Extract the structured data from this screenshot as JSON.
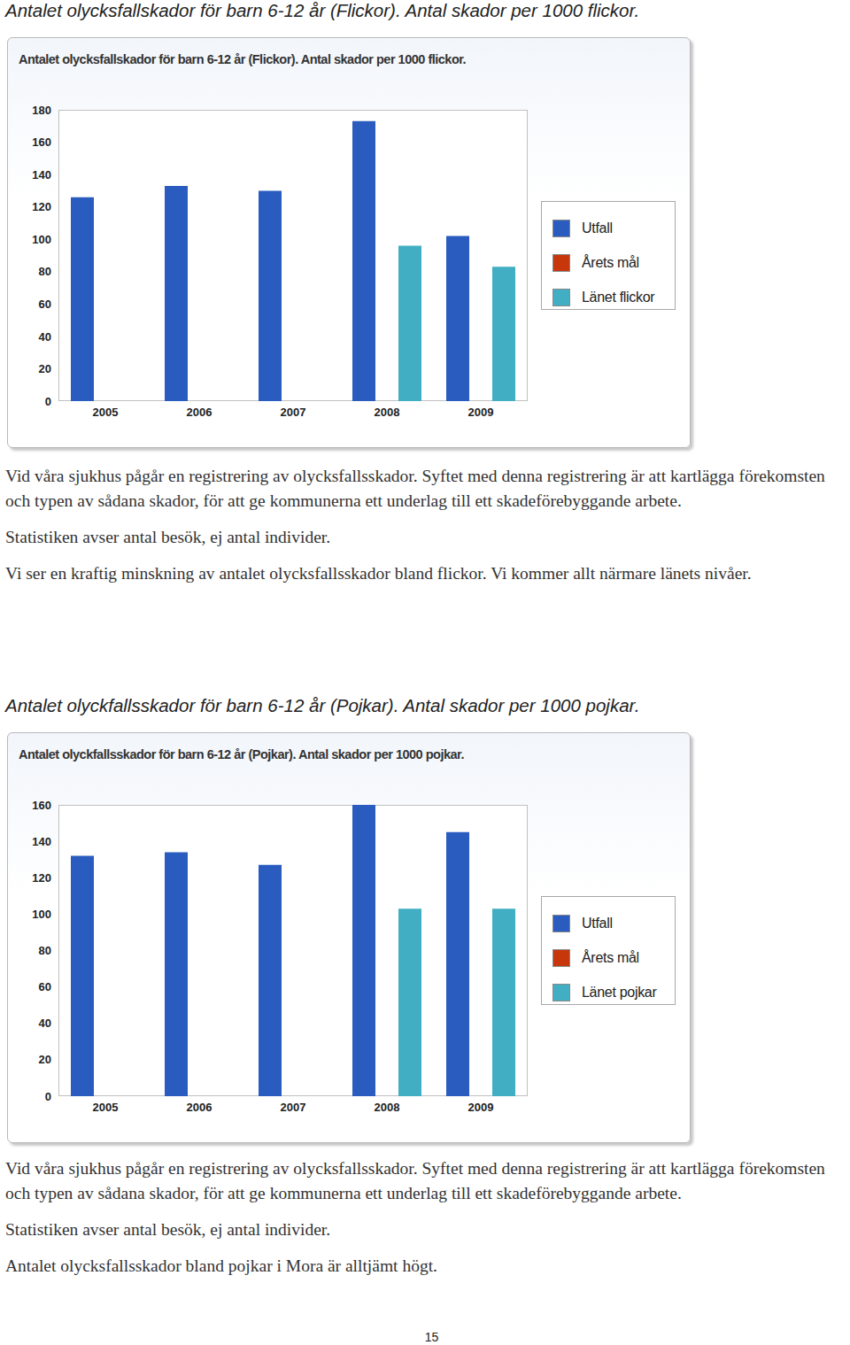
{
  "document": {
    "sections": [
      {
        "heading": "Antalet olycksfallskador för barn 6-12 år (Flickor). Antal skador per 1000 flickor.",
        "paragraphs": [
          "Vid våra sjukhus pågår en registrering av olycksfallsskador. Syftet med denna registrering är att kartlägga förekomsten och typen av sådana skador, för att ge kommunerna ett underlag till ett skadeförebyggande arbete.",
          "Statistiken avser antal besök, ej antal individer.",
          "Vi ser en kraftig minskning av antalet olycksfallsskador bland flickor. Vi kommer allt närmare länets nivåer."
        ]
      },
      {
        "heading": "Antalet olyckfallsskador för barn 6-12 år (Pojkar). Antal skador per 1000 pojkar.",
        "paragraphs": [
          "Vid våra sjukhus pågår en registrering av olycksfallsskador. Syftet med denna registrering är att kartlägga förekomsten och typen av sådana skador, för att ge kommunerna ett underlag till ett skadeförebyggande arbete.",
          "Statistiken avser antal besök, ej antal individer.",
          "Antalet olycksfallsskador bland pojkar i Mora är alltjämt högt."
        ]
      }
    ],
    "page_number": "15"
  },
  "chart_data": [
    {
      "type": "bar",
      "title": "Antalet olycksfallskador för barn 6-12 år (Flickor). Antal skador per 1000 flickor.",
      "categories": [
        "2005",
        "2006",
        "2007",
        "2008",
        "2009"
      ],
      "series": [
        {
          "name": "Utfall",
          "color": "#2a5cbf",
          "values": [
            126,
            133,
            130,
            173,
            102
          ]
        },
        {
          "name": "Årets mål",
          "color": "#c8360c",
          "values": [
            null,
            null,
            null,
            null,
            null
          ]
        },
        {
          "name": "Länet flickor",
          "color": "#41aec4",
          "values": [
            null,
            null,
            null,
            96,
            83
          ]
        }
      ],
      "ylim": [
        0,
        180
      ],
      "yticks": [
        0,
        20,
        40,
        60,
        80,
        100,
        120,
        140,
        160,
        180
      ],
      "grid": false,
      "legend": "right"
    },
    {
      "type": "bar",
      "title": "Antalet olyckfallsskador för barn 6-12 år (Pojkar). Antal skador per 1000 pojkar.",
      "categories": [
        "2005",
        "2006",
        "2007",
        "2008",
        "2009"
      ],
      "series": [
        {
          "name": "Utfall",
          "color": "#2a5cbf",
          "values": [
            132,
            134,
            127,
            160,
            145
          ]
        },
        {
          "name": "Årets mål",
          "color": "#c8360c",
          "values": [
            null,
            null,
            null,
            null,
            null
          ]
        },
        {
          "name": "Länet pojkar",
          "color": "#41aec4",
          "values": [
            null,
            null,
            null,
            103,
            103
          ]
        }
      ],
      "ylim": [
        0,
        160
      ],
      "yticks": [
        0,
        20,
        40,
        60,
        80,
        100,
        120,
        140,
        160
      ],
      "grid": false,
      "legend": "right"
    }
  ]
}
